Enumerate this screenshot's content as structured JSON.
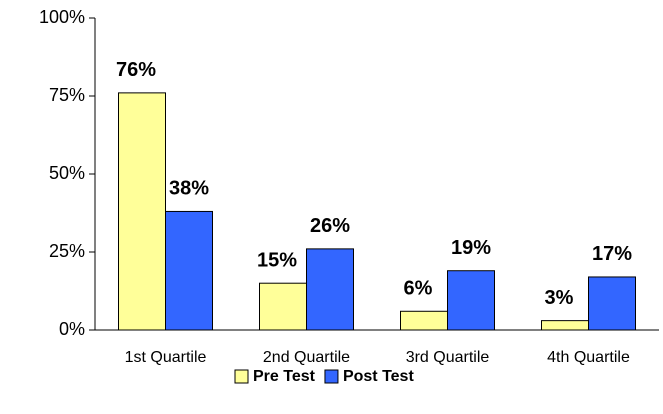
{
  "chart_data": {
    "type": "bar",
    "categories": [
      "1st Quartile",
      "2nd Quartile",
      "3rd Quartile",
      "4th Quartile"
    ],
    "series": [
      {
        "name": "Pre Test",
        "color": "#ffff99",
        "values": [
          76,
          15,
          6,
          3
        ],
        "value_labels": [
          "76%",
          "15%",
          "6%",
          "3%"
        ]
      },
      {
        "name": "Post Test",
        "color": "#3366ff",
        "values": [
          38,
          26,
          19,
          17
        ],
        "value_labels": [
          "38%",
          "26%",
          "19%",
          "17%"
        ]
      }
    ],
    "ylim": [
      0,
      100
    ],
    "yticks": [
      {
        "value": 0,
        "label": "0%"
      },
      {
        "value": 25,
        "label": "25%"
      },
      {
        "value": 50,
        "label": "50%"
      },
      {
        "value": 75,
        "label": "75%"
      },
      {
        "value": 100,
        "label": "100%"
      }
    ],
    "legend": "bottom"
  }
}
